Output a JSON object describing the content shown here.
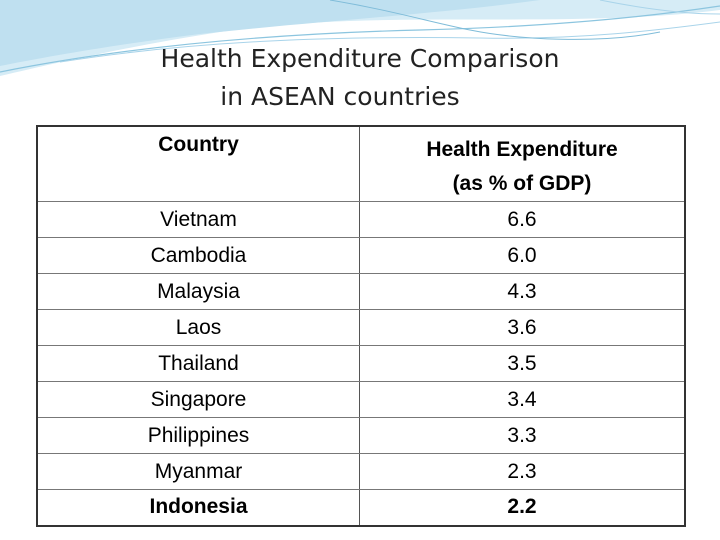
{
  "title": {
    "line1": "Health Expenditure Comparison",
    "line2": "in ASEAN countries"
  },
  "table": {
    "headers": {
      "country": "Country",
      "expenditure_line1": "Health Expenditure",
      "expenditure_line2": "(as % of GDP)"
    },
    "rows": [
      {
        "country": "Vietnam",
        "value": "6.6"
      },
      {
        "country": "Cambodia",
        "value": "6.0"
      },
      {
        "country": "Malaysia",
        "value": "4.3"
      },
      {
        "country": "Laos",
        "value": "3.6"
      },
      {
        "country": "Thailand",
        "value": "3.5"
      },
      {
        "country": "Singapore",
        "value": "3.4"
      },
      {
        "country": "Philippines",
        "value": "3.3"
      },
      {
        "country": "Myanmar",
        "value": "2.3"
      },
      {
        "country": "Indonesia",
        "value": "2.2"
      }
    ]
  },
  "colors": {
    "decor_light": "#d6ecf6",
    "decor_mid": "#a9d4ea",
    "decor_dark": "#7fbcd9"
  }
}
